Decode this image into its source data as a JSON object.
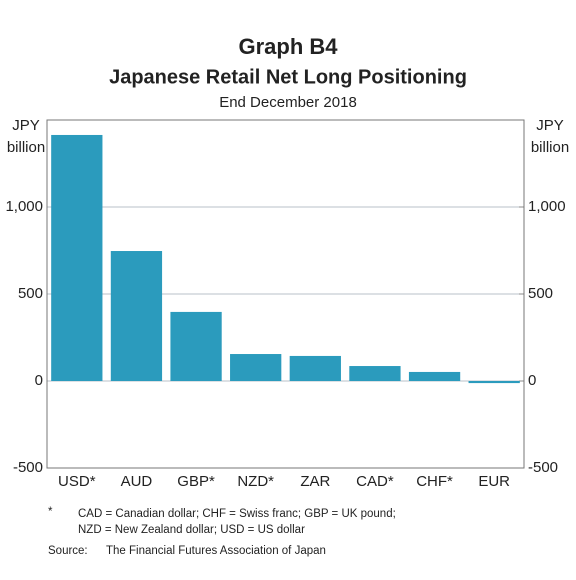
{
  "chart_data": {
    "type": "bar",
    "title": "Graph B4",
    "subtitle": "Japanese Retail Net Long Positioning",
    "date_label": "End December 2018",
    "y_unit": [
      "JPY",
      "billion"
    ],
    "y2_unit": [
      "JPY",
      "billion"
    ],
    "categories": [
      "USD*",
      "AUD",
      "GBP*",
      "NZD*",
      "ZAR",
      "CAD*",
      "CHF*",
      "EUR"
    ],
    "values": [
      1414,
      747,
      397,
      155,
      144,
      86,
      52,
      -12
    ],
    "color": "#2b9bbd",
    "ylim": [
      -500,
      1500
    ],
    "yticks": [
      -500,
      0,
      500,
      {
        "value": 1000,
        "label": "1,000"
      }
    ],
    "y2lim": [
      -500,
      1500
    ],
    "y2ticks": [
      -500,
      0,
      500,
      {
        "value": 1000,
        "label": "1,000"
      }
    ],
    "grid": true,
    "footnote": {
      "marker": "*",
      "lines": [
        "CAD = Canadian dollar; CHF = Swiss franc; GBP = UK pound;",
        "NZD = New Zealand dollar; USD = US dollar"
      ]
    },
    "source": {
      "label": "Source:",
      "text": "The Financial Futures Association of Japan"
    }
  }
}
